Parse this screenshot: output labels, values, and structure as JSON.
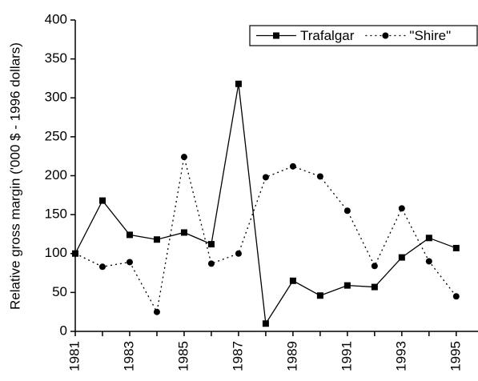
{
  "chart_data": {
    "type": "line",
    "y_label": "Relative gross margin ('000 $ - 1996 dollars)",
    "x": [
      1981,
      1982,
      1983,
      1984,
      1985,
      1986,
      1987,
      1988,
      1989,
      1990,
      1991,
      1992,
      1993,
      1994,
      1995
    ],
    "series": [
      {
        "name": "Trafalgar",
        "color": "#000000",
        "line_style": "solid",
        "marker": "square",
        "values": [
          100,
          168,
          124,
          118,
          127,
          112,
          318,
          10,
          65,
          46,
          59,
          57,
          95,
          120,
          107
        ]
      },
      {
        "name": "\"Shire\"",
        "color": "#000000",
        "line_style": "dotted",
        "marker": "circle",
        "values": [
          100,
          83,
          89,
          25,
          224,
          87,
          100,
          198,
          212,
          199,
          155,
          84,
          158,
          90,
          45
        ]
      }
    ],
    "xlim": [
      1981,
      1995.8
    ],
    "xticks": [
      1981,
      1983,
      1985,
      1987,
      1989,
      1991,
      1993,
      1995
    ],
    "ylim": [
      0,
      400
    ],
    "yticks": [
      0,
      50,
      100,
      150,
      200,
      250,
      300,
      350,
      400
    ],
    "grid": false,
    "legend": "top-right"
  }
}
